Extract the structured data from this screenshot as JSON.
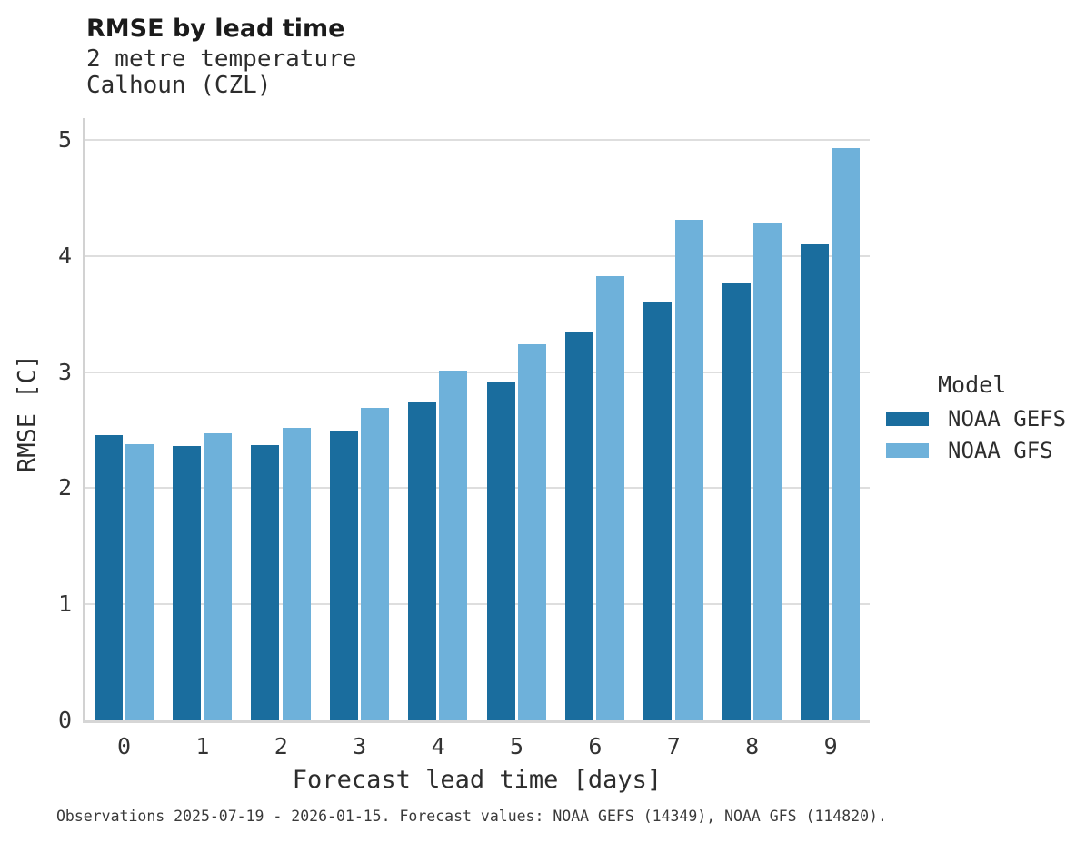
{
  "chart_data": {
    "type": "bar",
    "title": "RMSE by lead time",
    "subtitle_line1": "2 metre temperature",
    "subtitle_line2": "Calhoun (CZL)",
    "xlabel": "Forecast lead time [days]",
    "ylabel": "RMSE [C]",
    "legend_title": "Model",
    "legend_position": "right",
    "grid": "horizontal-gridlines-on",
    "categories": [
      0,
      1,
      2,
      3,
      4,
      5,
      6,
      7,
      8,
      9
    ],
    "yticks": [
      0,
      1,
      2,
      3,
      4,
      5
    ],
    "ylim": [
      0,
      5.19
    ],
    "series": [
      {
        "name": "NOAA GEFS",
        "color": "#1a6d9e",
        "values": [
          2.46,
          2.36,
          2.37,
          2.49,
          2.74,
          2.91,
          3.35,
          3.61,
          3.77,
          4.1
        ]
      },
      {
        "name": "NOAA GFS",
        "color": "#6eb1da",
        "values": [
          2.38,
          2.47,
          2.52,
          2.69,
          3.01,
          3.24,
          3.83,
          4.31,
          4.29,
          4.93
        ]
      }
    ],
    "caption": "Observations 2025-07-19 - 2026-01-15. Forecast values: NOAA GEFS (14349), NOAA GFS (114820)."
  },
  "colors": {
    "gridline": "#dedede",
    "axis_line": "#d4d4d4",
    "title_text": "#1b1b1b",
    "body_text": "#2d2d2d",
    "tick_text": "#333333"
  }
}
